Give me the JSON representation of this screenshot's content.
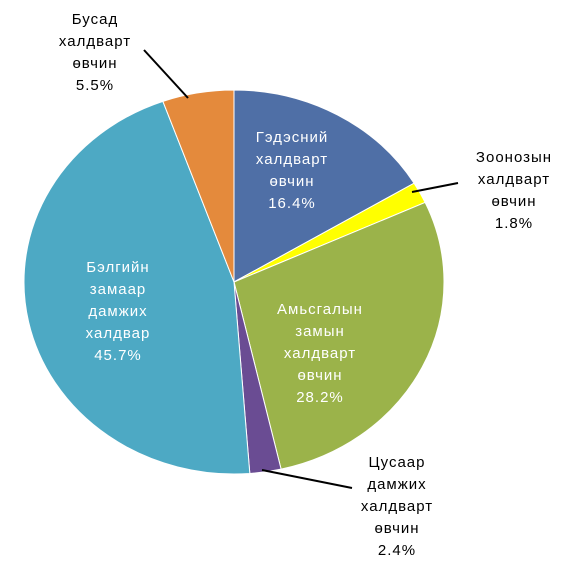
{
  "chart_data": {
    "type": "pie",
    "categories": [
      "Гэдэсний\nхалдварт\nөвчин",
      "Зоонозын\nхалдварт\nөвчин",
      "Амьсгалын\nзамын\nхалдварт\nөвчин",
      "Цусаар\nдамжих\nхалдварт\nөвчин",
      "Бэлгийн\nзамаар\nдамжих\nхалдвар",
      "Бусад\nхалдварт\nөвчин"
    ],
    "values": [
      16.4,
      1.8,
      28.2,
      2.4,
      45.7,
      5.5
    ],
    "value_labels": [
      "16.4%",
      "1.8%",
      "28.2%",
      "2.4%",
      "45.7%",
      "5.5%"
    ],
    "colors": [
      "#4f6fa6",
      "#ffff00",
      "#9bb34a",
      "#6a4c93",
      "#4da9c4",
      "#e48a3c"
    ]
  }
}
